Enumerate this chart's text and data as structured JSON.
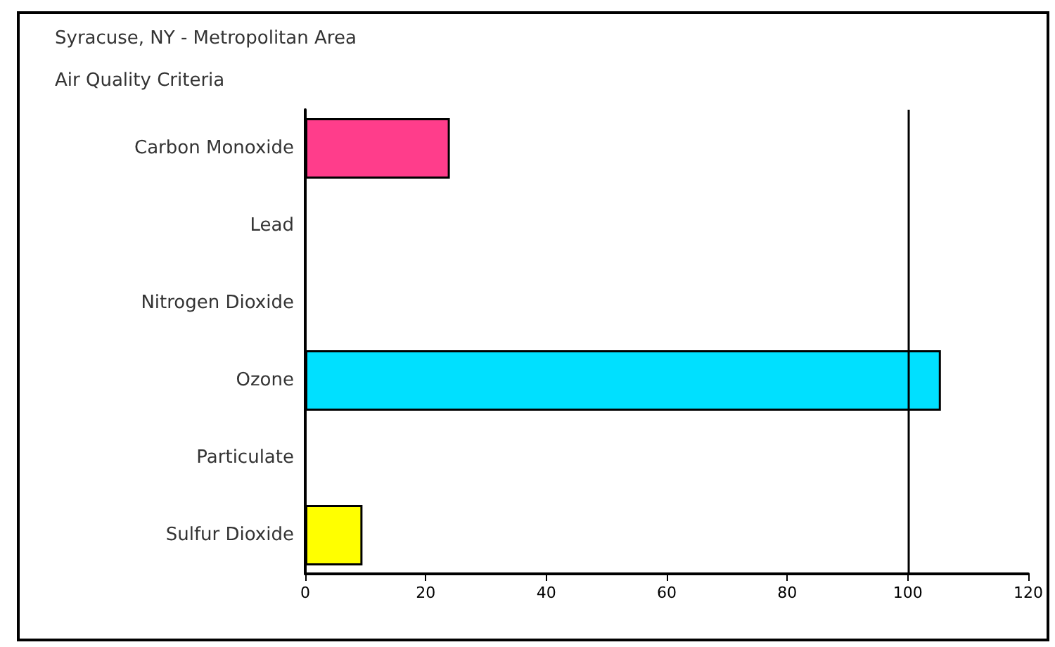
{
  "chart_data": {
    "type": "bar",
    "orientation": "horizontal",
    "title": "Syracuse, NY - Metropolitan Area",
    "subtitle": "Air Quality Criteria",
    "categories": [
      "Carbon Monoxide",
      "Lead",
      "Nitrogen Dioxide",
      "Ozone",
      "Particulate",
      "Sulfur Dioxide"
    ],
    "values": [
      24,
      null,
      null,
      105.5,
      null,
      9.5
    ],
    "colors": [
      "#ff3d8b",
      null,
      null,
      "#00e0ff",
      null,
      "#ffff00"
    ],
    "xlim": [
      0,
      120
    ],
    "xticks": [
      0,
      20,
      40,
      60,
      80,
      100,
      120
    ],
    "ref_lines": [
      {
        "axis": "x",
        "value": 100,
        "color": "#000000"
      }
    ],
    "grid": false
  }
}
